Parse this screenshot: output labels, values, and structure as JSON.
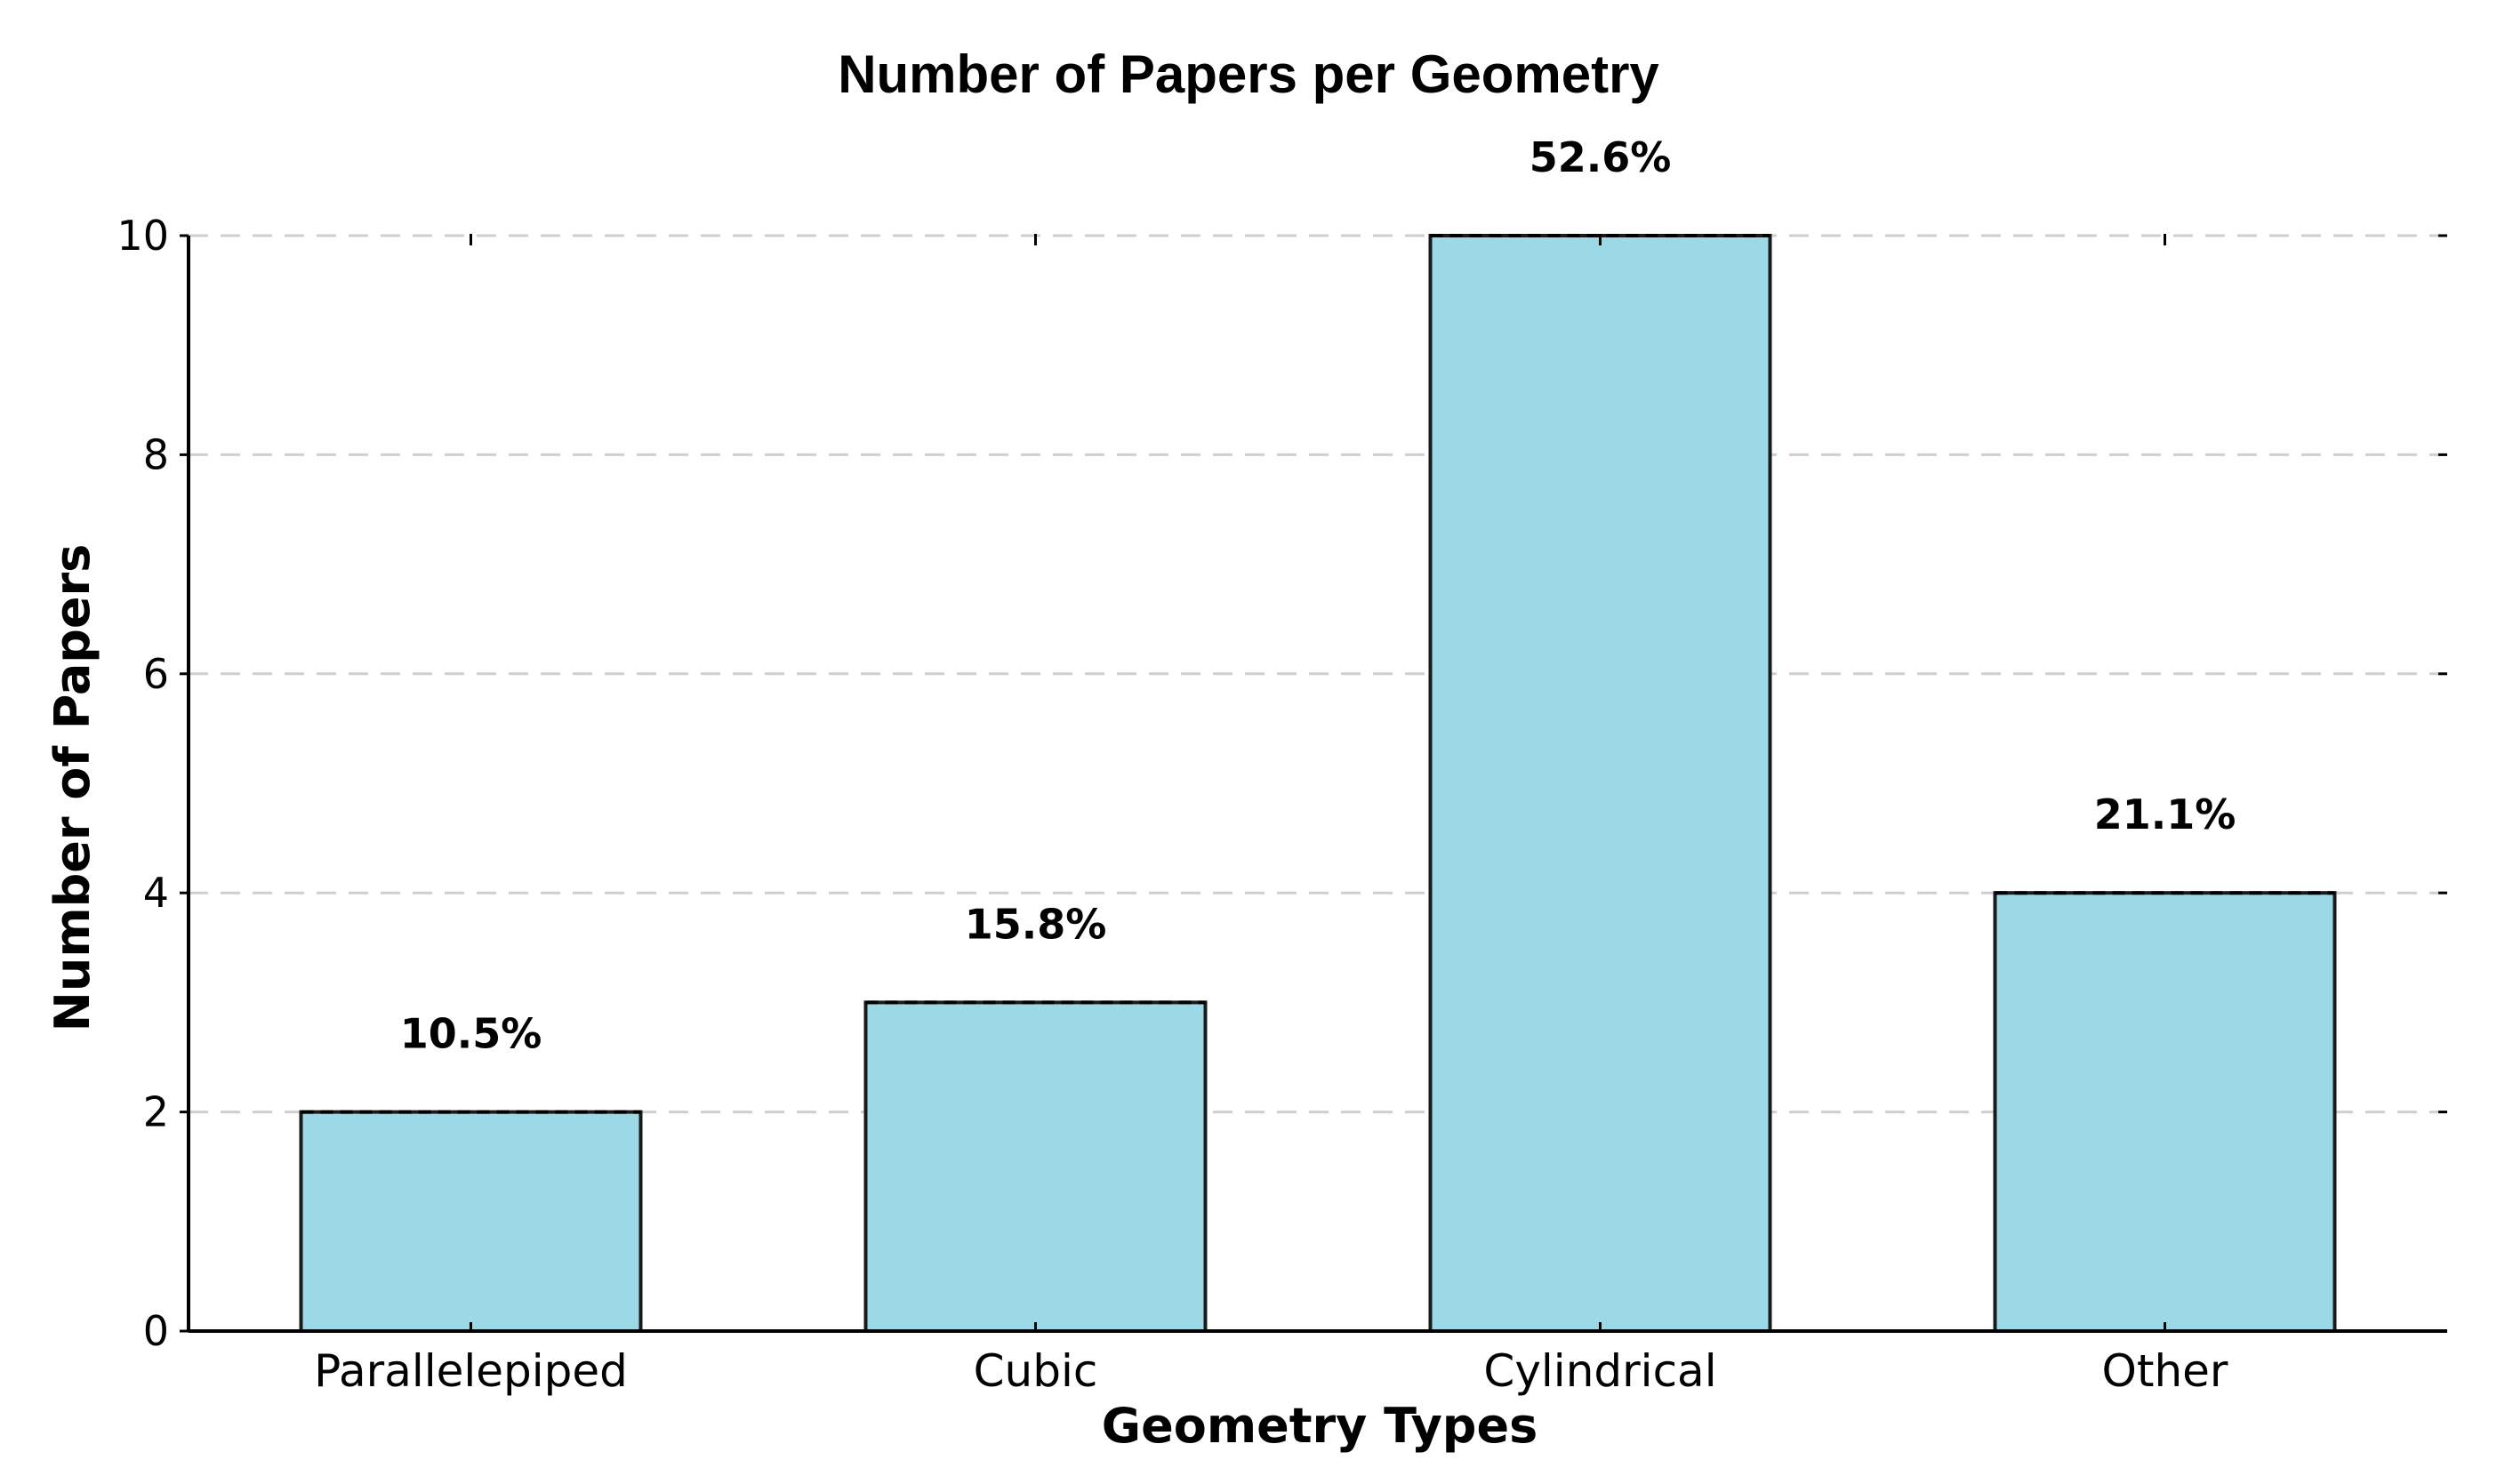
{
  "chart_data": {
    "type": "bar",
    "title": "Number of Papers per Geometry",
    "xlabel": "Geometry Types",
    "ylabel": "Number of Papers",
    "categories": [
      "Parallelepiped",
      "Cubic",
      "Cylindrical",
      "Other"
    ],
    "values": [
      2,
      3,
      10,
      4
    ],
    "data_labels": [
      "10.5%",
      "15.8%",
      "52.6%",
      "21.1%"
    ],
    "ylim": [
      0,
      10
    ],
    "yticks": [
      0,
      2,
      4,
      6,
      8,
      10
    ],
    "ytick_labels": [
      "0",
      "2",
      "4",
      "6",
      "8",
      "10"
    ],
    "grid": true,
    "grid_axis": "y",
    "grid_style": "dashed",
    "legend": false,
    "bar_color": "#9cd9e6",
    "bar_edge_color": "#1a1a1a"
  }
}
